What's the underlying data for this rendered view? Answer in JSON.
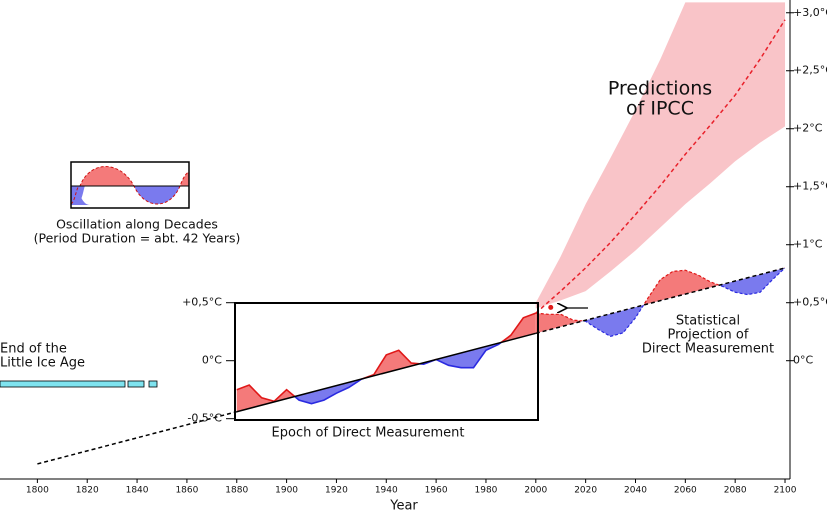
{
  "chart_data": {
    "type": "line",
    "x_label": "Year",
    "xlim": [
      1785,
      2102
    ],
    "ylim": [
      -1.02,
      3.11
    ],
    "xticks": [
      1800,
      1820,
      1840,
      1860,
      1880,
      1900,
      1920,
      1940,
      1960,
      1980,
      2000,
      2020,
      2040,
      2060,
      2080,
      2100
    ],
    "yticks": [
      {
        "value": 0,
        "label": "0°C"
      },
      {
        "value": 0.5,
        "label": "+0,5°C"
      },
      {
        "value": 1,
        "label": "+1°C"
      },
      {
        "value": 1.5,
        "label": "+1,5°C"
      },
      {
        "value": 2,
        "label": "+2°C"
      },
      {
        "value": 2.5,
        "label": "+2,5°C"
      },
      {
        "value": 3,
        "label": "+3,0°C"
      }
    ],
    "inner_yticks": [
      {
        "value": 0.5,
        "label": "+0,5°C"
      },
      {
        "value": 0,
        "label": "0°C"
      },
      {
        "value": -0.5,
        "label": "-0,5°C"
      }
    ],
    "above_color": "#f47a7a",
    "below_color": "#7a7aee",
    "trend": {
      "x": [
        1800,
        1880,
        2000,
        2100
      ],
      "values": [
        -0.89,
        -0.44,
        0.236,
        0.8
      ],
      "styles": [
        "dashed",
        "solid",
        "dashed"
      ]
    },
    "measured": {
      "x": [
        1880,
        1885,
        1890,
        1895,
        1900,
        1905,
        1910,
        1915,
        1920,
        1925,
        1930,
        1935,
        1940,
        1945,
        1950,
        1955,
        1960,
        1965,
        1970,
        1975,
        1980,
        1985,
        1990,
        1995,
        2000
      ],
      "values": [
        -0.25,
        -0.21,
        -0.32,
        -0.35,
        -0.25,
        -0.34,
        -0.37,
        -0.34,
        -0.28,
        -0.23,
        -0.16,
        -0.12,
        0.05,
        0.09,
        -0.02,
        -0.03,
        0.01,
        -0.04,
        -0.06,
        -0.06,
        0.09,
        0.14,
        0.22,
        0.37,
        0.41
      ]
    },
    "projection": {
      "x": [
        2000,
        2005,
        2010,
        2015,
        2020,
        2025,
        2030,
        2035,
        2040,
        2045,
        2050,
        2055,
        2060,
        2065,
        2070,
        2075,
        2080,
        2085,
        2090,
        2095,
        2100
      ],
      "values": [
        0.41,
        0.4,
        0.4,
        0.35,
        0.34,
        0.27,
        0.21,
        0.24,
        0.37,
        0.54,
        0.7,
        0.77,
        0.78,
        0.74,
        0.68,
        0.64,
        0.59,
        0.57,
        0.59,
        0.7,
        0.8
      ]
    },
    "ipcc": {
      "color": "#f9c4c8",
      "line_color": "#e8202a",
      "x": [
        2000,
        2010,
        2020,
        2030,
        2040,
        2050,
        2060,
        2070,
        2080,
        2090,
        2100
      ],
      "mean": [
        0.41,
        0.6,
        0.8,
        1.02,
        1.26,
        1.51,
        1.78,
        2.03,
        2.29,
        2.6,
        2.94
      ],
      "upper": [
        0.5,
        0.9,
        1.35,
        1.75,
        2.16,
        2.6,
        3.09,
        3.09,
        3.09,
        3.09,
        3.09
      ],
      "lower": [
        0.45,
        0.52,
        0.6,
        0.77,
        0.95,
        1.15,
        1.35,
        1.53,
        1.72,
        1.88,
        2.02
      ]
    },
    "marker": {
      "x": 2006,
      "value": 0.46
    },
    "ipcc_label": [
      "Predictions",
      "of IPCC"
    ],
    "projection_label": [
      "Statistical",
      "Projection of",
      "Direct Measurement"
    ],
    "epoch_label": "Epoch of Direct Measurement",
    "oscillation_label": [
      "Oscillation along Decades",
      "(Period Duration = abt. 42 Years)"
    ],
    "ice_age_label": [
      "End of the",
      "Little Ice Age"
    ]
  }
}
